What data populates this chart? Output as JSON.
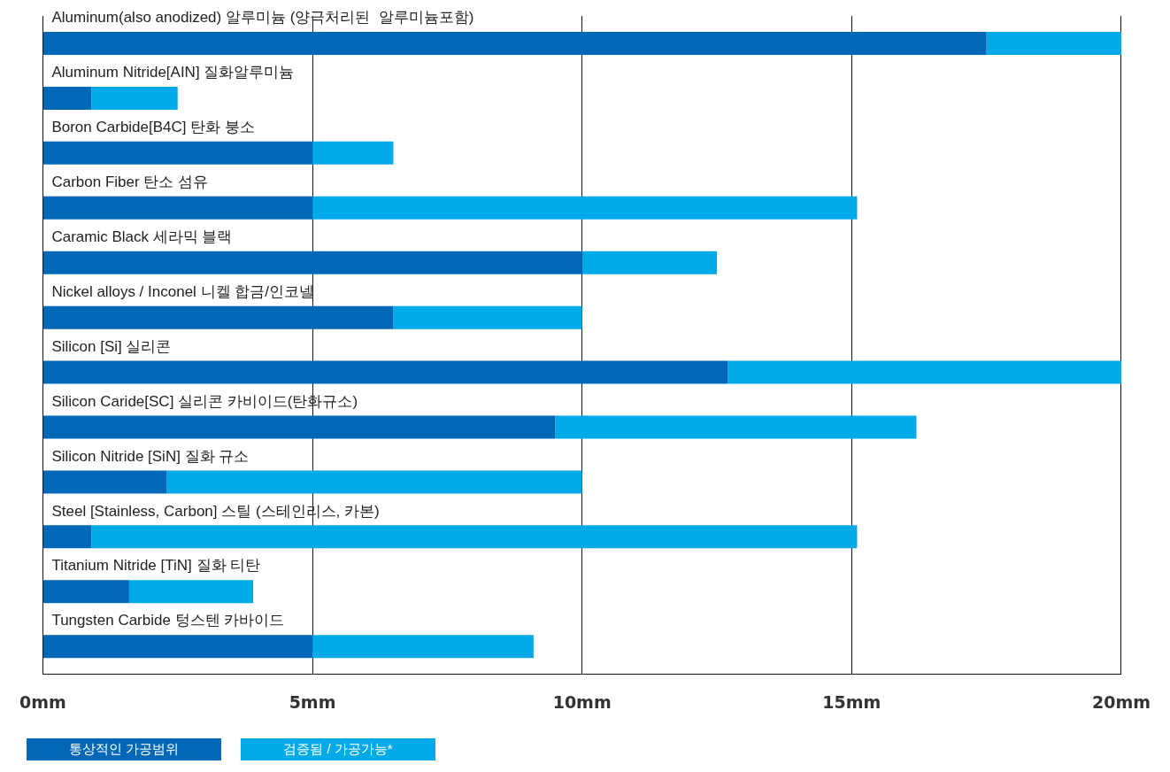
{
  "chart_data": {
    "type": "bar",
    "orientation": "horizontal",
    "stacked": true,
    "categories": [
      "Aluminum(also anodized) 알루미늄 (양극처리된  알루미늄포함)",
      "Aluminum Nitride[AIN] 질화알루미늄",
      "Boron Carbide[B4C] 탄화 붕소",
      "Carbon Fiber 탄소 섬유",
      "Caramic Black 세라믹 블랙",
      "Nickel alloys / Inconel 니켈 합금/인코넬",
      "Silicon [Si] 실리콘",
      "Silicon Caride[SC] 실리콘 카비이드(탄화규소)",
      "Silicon Nitride [SiN] 질화 규소",
      "Steel [Stainless, Carbon] 스틸 (스테인리스, 카본)",
      "Titanium Nitride [TiN] 질화 티탄",
      "Tungsten Carbide 텅스텐 카바이드"
    ],
    "series": [
      {
        "name": "통상적인 가공범위",
        "color": "#0068b7",
        "values": [
          17.5,
          0.9,
          5,
          5,
          10,
          6.5,
          12.7,
          9.5,
          2.3,
          0.9,
          1.6,
          5
        ]
      },
      {
        "name": "검증됨 / 가공가능*",
        "color": "#00a9e8",
        "values": [
          2.5,
          1.6,
          1.5,
          10.1,
          2.5,
          3.5,
          7.3,
          6.7,
          7.7,
          14.2,
          2.3,
          4.1
        ]
      }
    ],
    "xlim": [
      0,
      20
    ],
    "xticks": [
      {
        "value": 0,
        "label": "0mm"
      },
      {
        "value": 5,
        "label": "5mm"
      },
      {
        "value": 10,
        "label": "10mm"
      },
      {
        "value": 15,
        "label": "15mm"
      },
      {
        "value": 20,
        "label": "20mm"
      }
    ],
    "grid": "x",
    "legend": "bottom left"
  }
}
